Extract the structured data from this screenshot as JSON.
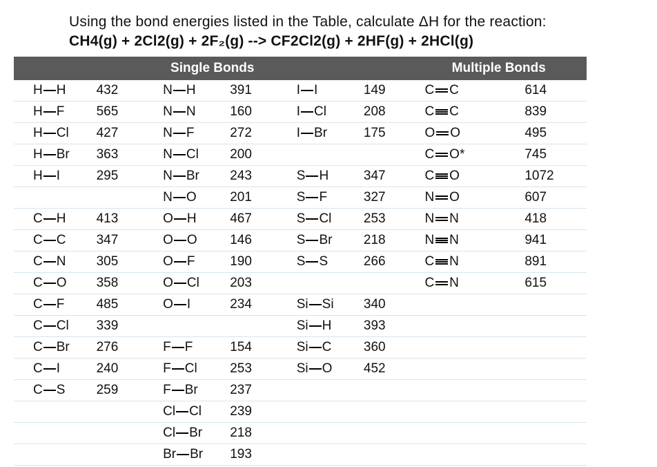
{
  "question": "Using the bond energies listed in the Table, calculate ΔH for the reaction:",
  "reaction": "CH4(g) + 2Cl2(g) + 2F₂(g) -->  CF2Cl2(g) + 2HF(g) + 2HCl(g)",
  "headers": {
    "single": "Single Bonds",
    "multiple": "Multiple Bonds"
  },
  "columns": {
    "c1": [
      {
        "bond": [
          "H",
          "H"
        ],
        "val": 432
      },
      {
        "bond": [
          "H",
          "F"
        ],
        "val": 565
      },
      {
        "bond": [
          "H",
          "Cl"
        ],
        "val": 427
      },
      {
        "bond": [
          "H",
          "Br"
        ],
        "val": 363
      },
      {
        "bond": [
          "H",
          "I"
        ],
        "val": 295
      },
      null,
      {
        "bond": [
          "C",
          "H"
        ],
        "val": 413
      },
      {
        "bond": [
          "C",
          "C"
        ],
        "val": 347
      },
      {
        "bond": [
          "C",
          "N"
        ],
        "val": 305
      },
      {
        "bond": [
          "C",
          "O"
        ],
        "val": 358
      },
      {
        "bond": [
          "C",
          "F"
        ],
        "val": 485
      },
      {
        "bond": [
          "C",
          "Cl"
        ],
        "val": 339
      },
      {
        "bond": [
          "C",
          "Br"
        ],
        "val": 276
      },
      {
        "bond": [
          "C",
          "I"
        ],
        "val": 240
      },
      {
        "bond": [
          "C",
          "S"
        ],
        "val": 259
      },
      null,
      null,
      null
    ],
    "c2": [
      {
        "bond": [
          "N",
          "H"
        ],
        "val": 391
      },
      {
        "bond": [
          "N",
          "N"
        ],
        "val": 160
      },
      {
        "bond": [
          "N",
          "F"
        ],
        "val": 272
      },
      {
        "bond": [
          "N",
          "Cl"
        ],
        "val": 200
      },
      {
        "bond": [
          "N",
          "Br"
        ],
        "val": 243
      },
      {
        "bond": [
          "N",
          "O"
        ],
        "val": 201
      },
      {
        "bond": [
          "O",
          "H"
        ],
        "val": 467
      },
      {
        "bond": [
          "O",
          "O"
        ],
        "val": 146
      },
      {
        "bond": [
          "O",
          "F"
        ],
        "val": 190
      },
      {
        "bond": [
          "O",
          "Cl"
        ],
        "val": 203
      },
      {
        "bond": [
          "O",
          "I"
        ],
        "val": 234
      },
      null,
      {
        "bond": [
          "F",
          "F"
        ],
        "val": 154
      },
      {
        "bond": [
          "F",
          "Cl"
        ],
        "val": 253
      },
      {
        "bond": [
          "F",
          "Br"
        ],
        "val": 237
      },
      {
        "bond": [
          "Cl",
          "Cl"
        ],
        "val": 239
      },
      {
        "bond": [
          "Cl",
          "Br"
        ],
        "val": 218
      },
      {
        "bond": [
          "Br",
          "Br"
        ],
        "val": 193
      }
    ],
    "c3": [
      {
        "bond": [
          "I",
          "I"
        ],
        "val": 149
      },
      {
        "bond": [
          "I",
          "Cl"
        ],
        "val": 208
      },
      {
        "bond": [
          "I",
          "Br"
        ],
        "val": 175
      },
      null,
      {
        "bond": [
          "S",
          "H"
        ],
        "val": 347
      },
      {
        "bond": [
          "S",
          "F"
        ],
        "val": 327
      },
      {
        "bond": [
          "S",
          "Cl"
        ],
        "val": 253
      },
      {
        "bond": [
          "S",
          "Br"
        ],
        "val": 218
      },
      {
        "bond": [
          "S",
          "S"
        ],
        "val": 266
      },
      null,
      {
        "bond": [
          "Si",
          "Si"
        ],
        "val": 340
      },
      {
        "bond": [
          "Si",
          "H"
        ],
        "val": 393
      },
      {
        "bond": [
          "Si",
          "C"
        ],
        "val": 360
      },
      {
        "bond": [
          "Si",
          "O"
        ],
        "val": 452
      },
      null,
      null,
      null,
      null
    ],
    "c4": [
      {
        "bond": [
          "C",
          "C"
        ],
        "order": 2,
        "val": 614
      },
      {
        "bond": [
          "C",
          "C"
        ],
        "order": 3,
        "val": 839
      },
      {
        "bond": [
          "O",
          "O"
        ],
        "order": 2,
        "val": 495
      },
      {
        "bond": [
          "C",
          "O*"
        ],
        "order": 2,
        "val": 745
      },
      {
        "bond": [
          "C",
          "O"
        ],
        "order": 3,
        "val": 1072
      },
      {
        "bond": [
          "N",
          "O"
        ],
        "order": 2,
        "val": 607
      },
      {
        "bond": [
          "N",
          "N"
        ],
        "order": 2,
        "val": 418
      },
      {
        "bond": [
          "N",
          "N"
        ],
        "order": 3,
        "val": 941
      },
      {
        "bond": [
          "C",
          "N"
        ],
        "order": 3,
        "val": 891
      },
      {
        "bond": [
          "C",
          "N"
        ],
        "order": 2,
        "val": 615
      },
      null,
      null,
      null,
      null,
      null,
      null,
      null,
      null
    ]
  },
  "rowCount": 18,
  "colors": {
    "headerBg": "#5a5a5a",
    "headerText": "#ffffff",
    "rowBorder": "#d6e4ef"
  }
}
